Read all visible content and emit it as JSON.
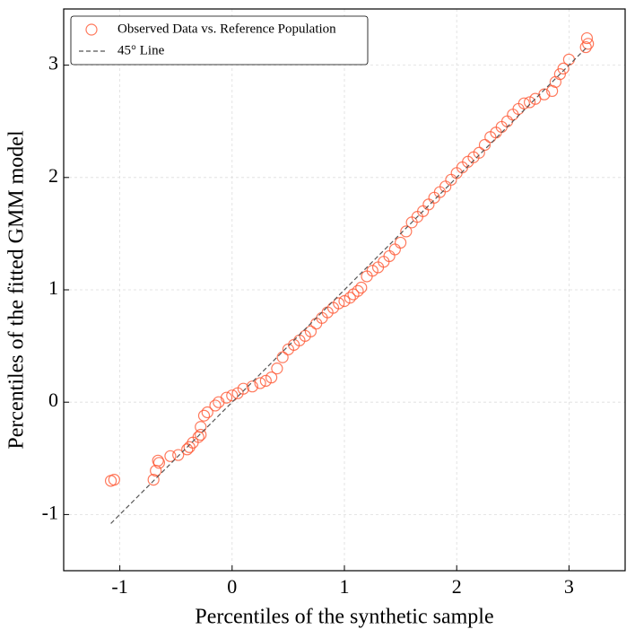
{
  "chart_data": {
    "type": "scatter",
    "xlabel": "Percentiles of the synthetic sample",
    "ylabel": "Percentiles of the fitted GMM model",
    "xlim": [
      -1.5,
      3.5
    ],
    "ylim": [
      -1.5,
      3.5
    ],
    "xticks": [
      -1,
      0,
      1,
      2,
      3
    ],
    "yticks": [
      -1,
      0,
      1,
      2,
      3
    ],
    "grid": true,
    "legend": "upper left",
    "series": [
      {
        "name": "Observed Data vs. Reference Population",
        "color": "#ff5733",
        "marker": "hollow-circle",
        "x": [
          -1.08,
          -1.05,
          -0.7,
          -0.68,
          -0.65,
          -0.66,
          -0.55,
          -0.48,
          -0.4,
          -0.38,
          -0.35,
          -0.3,
          -0.28,
          -0.28,
          -0.25,
          -0.22,
          -0.15,
          -0.12,
          -0.05,
          0.0,
          0.05,
          0.1,
          0.18,
          0.25,
          0.3,
          0.35,
          0.4,
          0.45,
          0.5,
          0.55,
          0.6,
          0.65,
          0.7,
          0.75,
          0.8,
          0.85,
          0.9,
          0.95,
          1.0,
          1.05,
          1.08,
          1.12,
          1.15,
          1.2,
          1.25,
          1.3,
          1.35,
          1.4,
          1.45,
          1.5,
          1.55,
          1.6,
          1.65,
          1.7,
          1.75,
          1.8,
          1.85,
          1.9,
          1.95,
          2.0,
          2.05,
          2.1,
          2.15,
          2.2,
          2.25,
          2.3,
          2.35,
          2.4,
          2.45,
          2.5,
          2.55,
          2.6,
          2.65,
          2.7,
          2.78,
          2.85,
          2.88,
          2.92,
          2.95,
          3.0,
          3.15,
          3.17,
          3.16
        ],
        "y": [
          -0.7,
          -0.69,
          -0.69,
          -0.61,
          -0.54,
          -0.52,
          -0.48,
          -0.47,
          -0.42,
          -0.4,
          -0.36,
          -0.31,
          -0.29,
          -0.22,
          -0.12,
          -0.09,
          -0.03,
          0.0,
          0.04,
          0.06,
          0.08,
          0.12,
          0.14,
          0.17,
          0.19,
          0.22,
          0.3,
          0.4,
          0.47,
          0.51,
          0.55,
          0.59,
          0.63,
          0.7,
          0.75,
          0.8,
          0.84,
          0.88,
          0.9,
          0.93,
          0.96,
          0.99,
          1.02,
          1.12,
          1.17,
          1.2,
          1.25,
          1.3,
          1.36,
          1.42,
          1.52,
          1.6,
          1.65,
          1.7,
          1.76,
          1.82,
          1.87,
          1.92,
          1.98,
          2.04,
          2.09,
          2.14,
          2.18,
          2.22,
          2.29,
          2.36,
          2.4,
          2.45,
          2.5,
          2.56,
          2.61,
          2.66,
          2.67,
          2.7,
          2.74,
          2.77,
          2.85,
          2.92,
          2.97,
          3.05,
          3.16,
          3.19,
          3.24
        ]
      },
      {
        "name": "45° Line",
        "color": "#555555",
        "marker": "dashed-line",
        "x": [
          -1.08,
          3.16
        ],
        "y": [
          -1.08,
          3.16
        ]
      }
    ]
  }
}
